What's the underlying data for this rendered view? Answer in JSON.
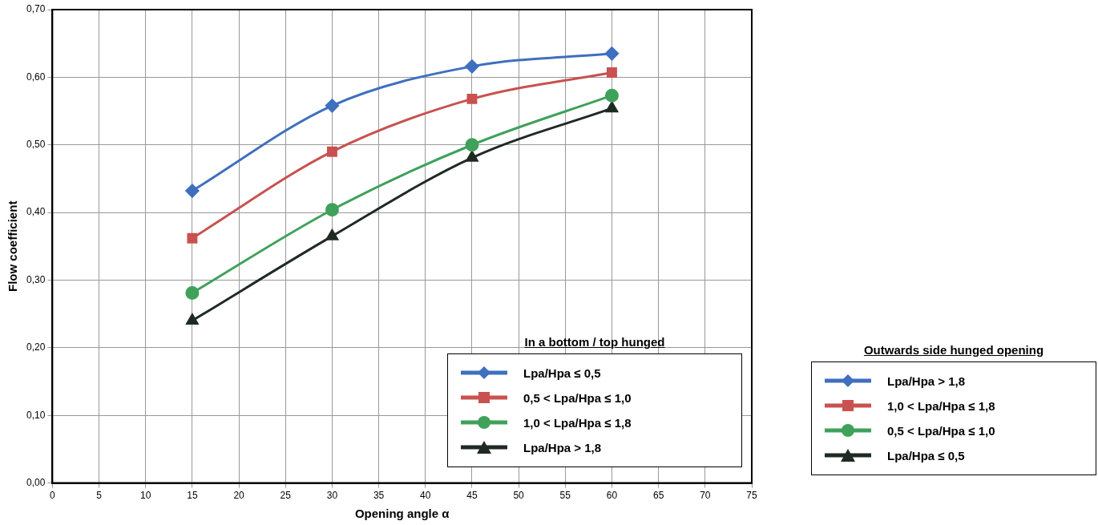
{
  "chart_data": {
    "type": "line",
    "xlabel": "Opening angle α",
    "ylabel": "Flow coefficient",
    "legend_title": "In a bottom / top hunged",
    "legend": "bottom right",
    "grid": true,
    "line_style": "solid",
    "x": [
      15,
      30,
      45,
      60
    ],
    "xlim": [
      0,
      75
    ],
    "xticks": [
      0,
      5,
      10,
      15,
      20,
      25,
      30,
      35,
      40,
      45,
      50,
      55,
      60,
      65,
      70,
      75
    ],
    "ylim": [
      0,
      0.7
    ],
    "yticks": [
      {
        "value": 0,
        "label": "0,00"
      },
      {
        "value": 0.1,
        "label": "0,10"
      },
      {
        "value": 0.2,
        "label": "0,20"
      },
      {
        "value": 0.3,
        "label": "0,30"
      },
      {
        "value": 0.4,
        "label": "0,40"
      },
      {
        "value": 0.5,
        "label": "0,50"
      },
      {
        "value": 0.6,
        "label": "0,60"
      },
      {
        "value": 0.7,
        "label": "0,70"
      }
    ],
    "series": [
      {
        "name": "Lpa/Hpa ≤ 0,5",
        "color": "#3f6fbf",
        "marker": "diamond",
        "values": [
          0.432,
          0.558,
          0.616,
          0.635
        ]
      },
      {
        "name": "0,5 < Lpa/Hpa ≤ 1,0",
        "color": "#c9514f",
        "marker": "square",
        "values": [
          0.362,
          0.49,
          0.568,
          0.607
        ]
      },
      {
        "name": "1,0 < Lpa/Hpa ≤ 1,8",
        "color": "#3fa15a",
        "marker": "circle",
        "values": [
          0.281,
          0.404,
          0.5,
          0.573
        ]
      },
      {
        "name": "Lpa/Hpa > 1,8",
        "color": "#1f2a22",
        "marker": "triangle",
        "values": [
          0.24,
          0.365,
          0.481,
          0.554
        ]
      }
    ],
    "annotations": [
      "Outwards side hunged opening",
      "Lpa/Hpa > 1,8",
      "1,0 < Lpa/Hpa ≤ 1,8",
      "0,5 < Lpa/Hpa ≤ 1,0",
      "Lpa/Hpa ≤ 0,5"
    ]
  }
}
